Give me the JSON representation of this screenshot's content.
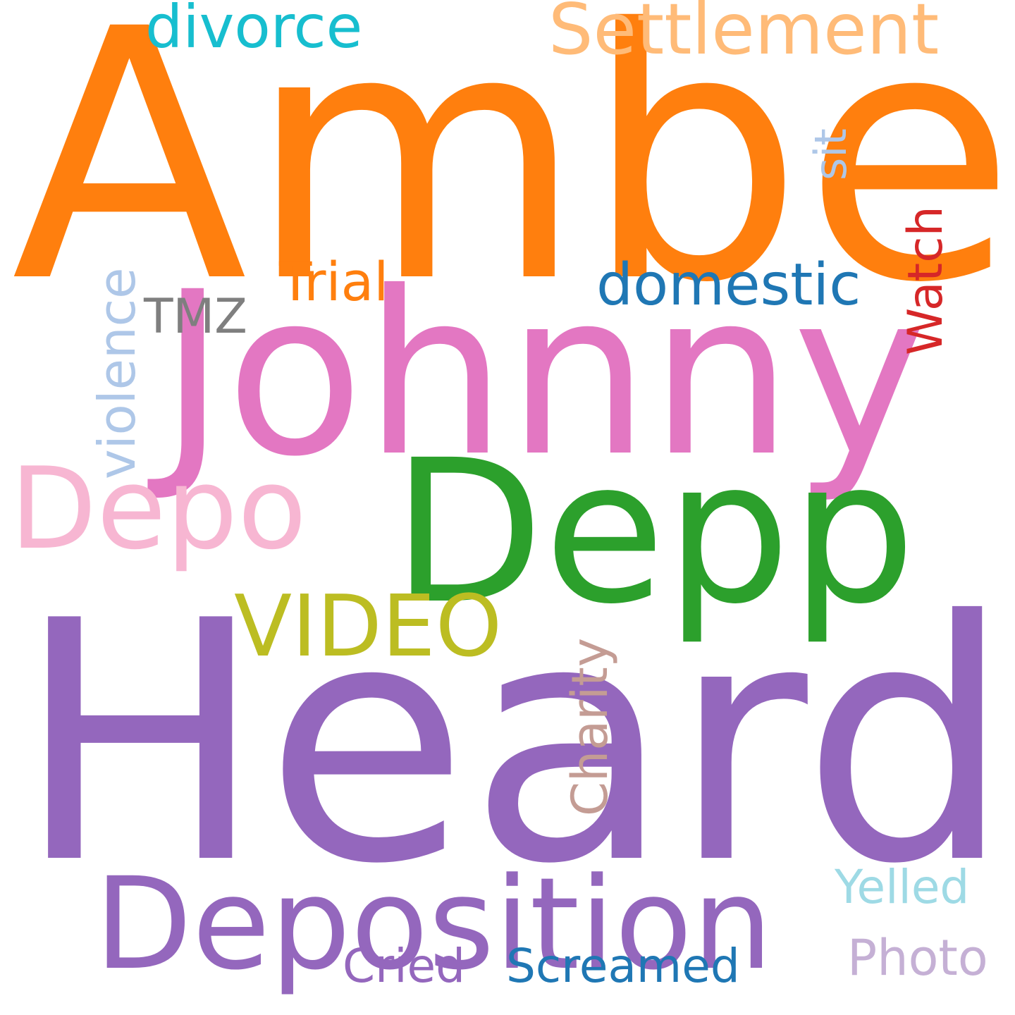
{
  "words": [
    {
      "key": "amber",
      "text": "Amber",
      "color": "#ff7f0e",
      "orientation": "horizontal"
    },
    {
      "key": "heard",
      "text": "Heard",
      "color": "#9467bd",
      "orientation": "horizontal"
    },
    {
      "key": "johnny",
      "text": "Johnny",
      "color": "#e377c2",
      "orientation": "horizontal"
    },
    {
      "key": "depp",
      "text": "Depp",
      "color": "#2ca02c",
      "orientation": "horizontal"
    },
    {
      "key": "deposition",
      "text": "Deposition",
      "color": "#9467bd",
      "orientation": "horizontal"
    },
    {
      "key": "depo",
      "text": "Depo",
      "color": "#f7b6d2",
      "orientation": "horizontal"
    },
    {
      "key": "settlement",
      "text": "Settlement",
      "color": "#ffbb78",
      "orientation": "horizontal"
    },
    {
      "key": "divorce",
      "text": "divorce",
      "color": "#17becf",
      "orientation": "horizontal"
    },
    {
      "key": "video",
      "text": "VIDEO",
      "color": "#bcbd22",
      "orientation": "horizontal"
    },
    {
      "key": "domestic",
      "text": "domestic",
      "color": "#1f77b4",
      "orientation": "horizontal"
    },
    {
      "key": "trial",
      "text": "Trial",
      "color": "#ff7f0e",
      "orientation": "horizontal"
    },
    {
      "key": "tmz",
      "text": "TMZ",
      "color": "#7f7f7f",
      "orientation": "horizontal"
    },
    {
      "key": "yelled",
      "text": "Yelled",
      "color": "#9edae5",
      "orientation": "horizontal"
    },
    {
      "key": "photo",
      "text": "Photo",
      "color": "#c5b0d5",
      "orientation": "horizontal"
    },
    {
      "key": "cried",
      "text": "Cried",
      "color": "#9467bd",
      "orientation": "horizontal"
    },
    {
      "key": "screamed",
      "text": "Screamed",
      "color": "#1f77b4",
      "orientation": "horizontal"
    },
    {
      "key": "violence",
      "text": "violence",
      "color": "#aec7e8",
      "orientation": "vertical"
    },
    {
      "key": "sit",
      "text": "sit",
      "color": "#aec7e8",
      "orientation": "vertical"
    },
    {
      "key": "watch",
      "text": "Watch",
      "color": "#d62728",
      "orientation": "vertical"
    },
    {
      "key": "charity",
      "text": "Charity",
      "color": "#c49c94",
      "orientation": "vertical"
    }
  ]
}
